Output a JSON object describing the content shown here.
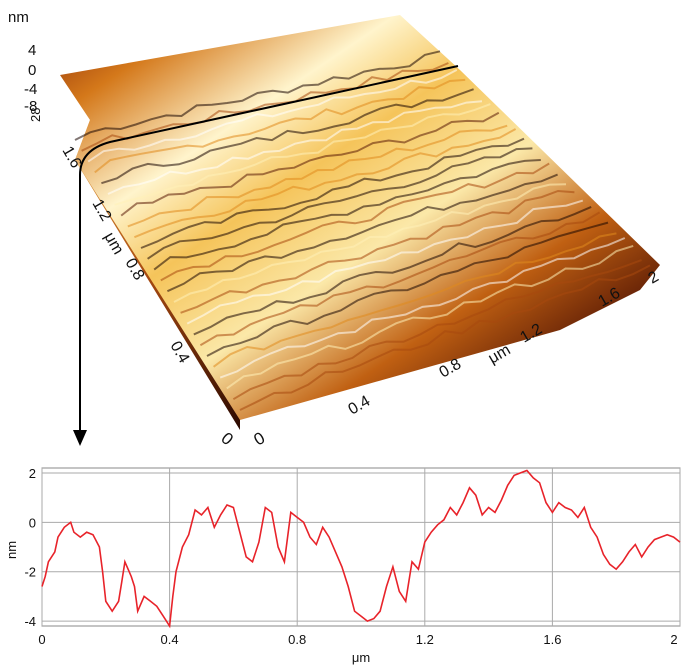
{
  "surface_plot": {
    "z_unit": "nm",
    "z_ticks": [
      "4",
      "0",
      "-4",
      "-8",
      "28"
    ],
    "y_ticks": [
      "1.6",
      "1.2",
      "0.8",
      "0.4",
      "0"
    ],
    "y_unit": "μm",
    "x_ticks": [
      "0",
      "0.4",
      "0.8",
      "1.2",
      "1.6",
      "2"
    ],
    "x_unit": "μm",
    "colormap": [
      "#1a0500",
      "#5a1a05",
      "#a8480e",
      "#e08a1e",
      "#f5c45a",
      "#fff0b8",
      "#ffffff"
    ]
  },
  "chart_data": {
    "type": "line",
    "xlabel": "μm",
    "ylabel": "nm",
    "xlim": [
      0,
      2
    ],
    "ylim": [
      -4.2,
      2.2
    ],
    "x_ticks": [
      "0",
      "0.4",
      "0.8",
      "1.2",
      "1.6",
      "2"
    ],
    "y_ticks": [
      "2",
      "0",
      "-2",
      "-4"
    ],
    "grid": true,
    "line_color": "#e8232a",
    "series": [
      {
        "x": [
          0.0,
          0.01,
          0.02,
          0.04,
          0.05,
          0.07,
          0.09,
          0.1,
          0.12,
          0.14,
          0.16,
          0.18,
          0.19,
          0.2,
          0.22,
          0.24,
          0.25,
          0.26,
          0.28,
          0.29,
          0.3,
          0.32,
          0.34,
          0.36,
          0.38,
          0.4,
          0.41,
          0.42,
          0.44,
          0.46,
          0.48,
          0.5,
          0.52,
          0.54,
          0.56,
          0.58,
          0.6,
          0.62,
          0.64,
          0.66,
          0.68,
          0.7,
          0.72,
          0.74,
          0.76,
          0.78,
          0.8,
          0.82,
          0.84,
          0.86,
          0.88,
          0.9,
          0.92,
          0.94,
          0.96,
          0.98,
          1.0,
          1.02,
          1.04,
          1.06,
          1.08,
          1.1,
          1.12,
          1.14,
          1.16,
          1.18,
          1.2,
          1.22,
          1.24,
          1.26,
          1.28,
          1.3,
          1.32,
          1.34,
          1.36,
          1.38,
          1.4,
          1.42,
          1.44,
          1.46,
          1.48,
          1.5,
          1.52,
          1.54,
          1.56,
          1.58,
          1.6,
          1.62,
          1.64,
          1.66,
          1.68,
          1.7,
          1.72,
          1.74,
          1.76,
          1.78,
          1.8,
          1.82,
          1.84,
          1.86,
          1.88,
          1.9,
          1.92,
          1.94,
          1.96,
          1.98,
          2.0
        ],
        "y": [
          -2.6,
          -2.2,
          -1.6,
          -1.2,
          -0.6,
          -0.2,
          0.0,
          -0.4,
          -0.6,
          -0.4,
          -0.5,
          -1.0,
          -2.0,
          -3.2,
          -3.6,
          -3.2,
          -2.4,
          -1.6,
          -2.2,
          -2.6,
          -3.6,
          -3.0,
          -3.2,
          -3.4,
          -3.8,
          -4.2,
          -3.0,
          -2.0,
          -1.0,
          -0.5,
          0.5,
          0.3,
          0.6,
          -0.2,
          0.3,
          0.7,
          0.6,
          -0.4,
          -1.4,
          -1.6,
          -0.8,
          0.6,
          0.4,
          -1.0,
          -1.6,
          0.4,
          0.2,
          0.0,
          -0.6,
          -0.9,
          -0.2,
          -0.6,
          -1.2,
          -1.8,
          -2.6,
          -3.6,
          -3.8,
          -4.0,
          -3.9,
          -3.6,
          -2.6,
          -1.8,
          -2.8,
          -3.2,
          -1.6,
          -1.9,
          -0.8,
          -0.4,
          -0.1,
          0.1,
          0.6,
          0.3,
          0.8,
          1.4,
          1.1,
          0.3,
          0.6,
          0.4,
          0.9,
          1.5,
          1.9,
          2.0,
          2.1,
          1.8,
          1.6,
          0.8,
          0.4,
          0.8,
          0.6,
          0.5,
          0.2,
          0.6,
          -0.2,
          -0.6,
          -1.3,
          -1.7,
          -1.9,
          -1.6,
          -1.2,
          -0.9,
          -1.4,
          -1.0,
          -0.7,
          -0.6,
          -0.5,
          -0.6,
          -0.8
        ]
      }
    ]
  }
}
